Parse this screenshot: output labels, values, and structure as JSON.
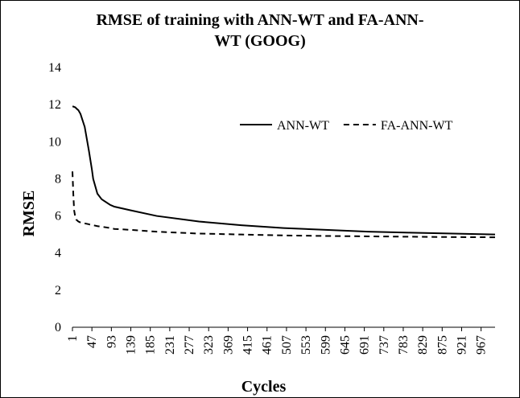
{
  "chart_data": {
    "type": "line",
    "title": "RMSE of training with ANN-WT and FA-ANN-WT (GOOG)",
    "xlabel": "Cycles",
    "ylabel": "RMSE",
    "x": [
      1,
      3,
      5,
      8,
      10,
      15,
      20,
      30,
      40,
      47,
      50,
      60,
      70,
      90,
      100,
      139,
      200,
      300,
      400,
      500,
      600,
      700,
      800,
      900,
      1000
    ],
    "series": [
      {
        "name": "ANN-WT",
        "color": "#000000",
        "dash": "solid",
        "values": [
          11.9,
          11.9,
          11.88,
          11.85,
          11.8,
          11.7,
          11.5,
          10.8,
          9.5,
          8.5,
          8.0,
          7.2,
          6.9,
          6.6,
          6.5,
          6.3,
          6.0,
          5.7,
          5.5,
          5.35,
          5.25,
          5.15,
          5.1,
          5.05,
          5.0
        ]
      },
      {
        "name": "FA-ANN-WT",
        "color": "#000000",
        "dash": "dashed",
        "values": [
          8.4,
          7.2,
          6.3,
          5.9,
          5.8,
          5.7,
          5.65,
          5.6,
          5.55,
          5.5,
          5.5,
          5.45,
          5.42,
          5.35,
          5.3,
          5.25,
          5.15,
          5.05,
          5.0,
          4.95,
          4.92,
          4.9,
          4.88,
          4.86,
          4.85
        ]
      }
    ],
    "xlim": [
      1,
      1000
    ],
    "xticks": [
      1,
      47,
      93,
      139,
      185,
      231,
      277,
      323,
      369,
      415,
      461,
      507,
      553,
      599,
      645,
      691,
      737,
      783,
      829,
      875,
      921,
      967
    ],
    "ylim": [
      0,
      14
    ],
    "yticks": [
      0,
      2,
      4,
      6,
      8,
      10,
      12,
      14
    ],
    "grid": false,
    "legend": "upper right"
  }
}
